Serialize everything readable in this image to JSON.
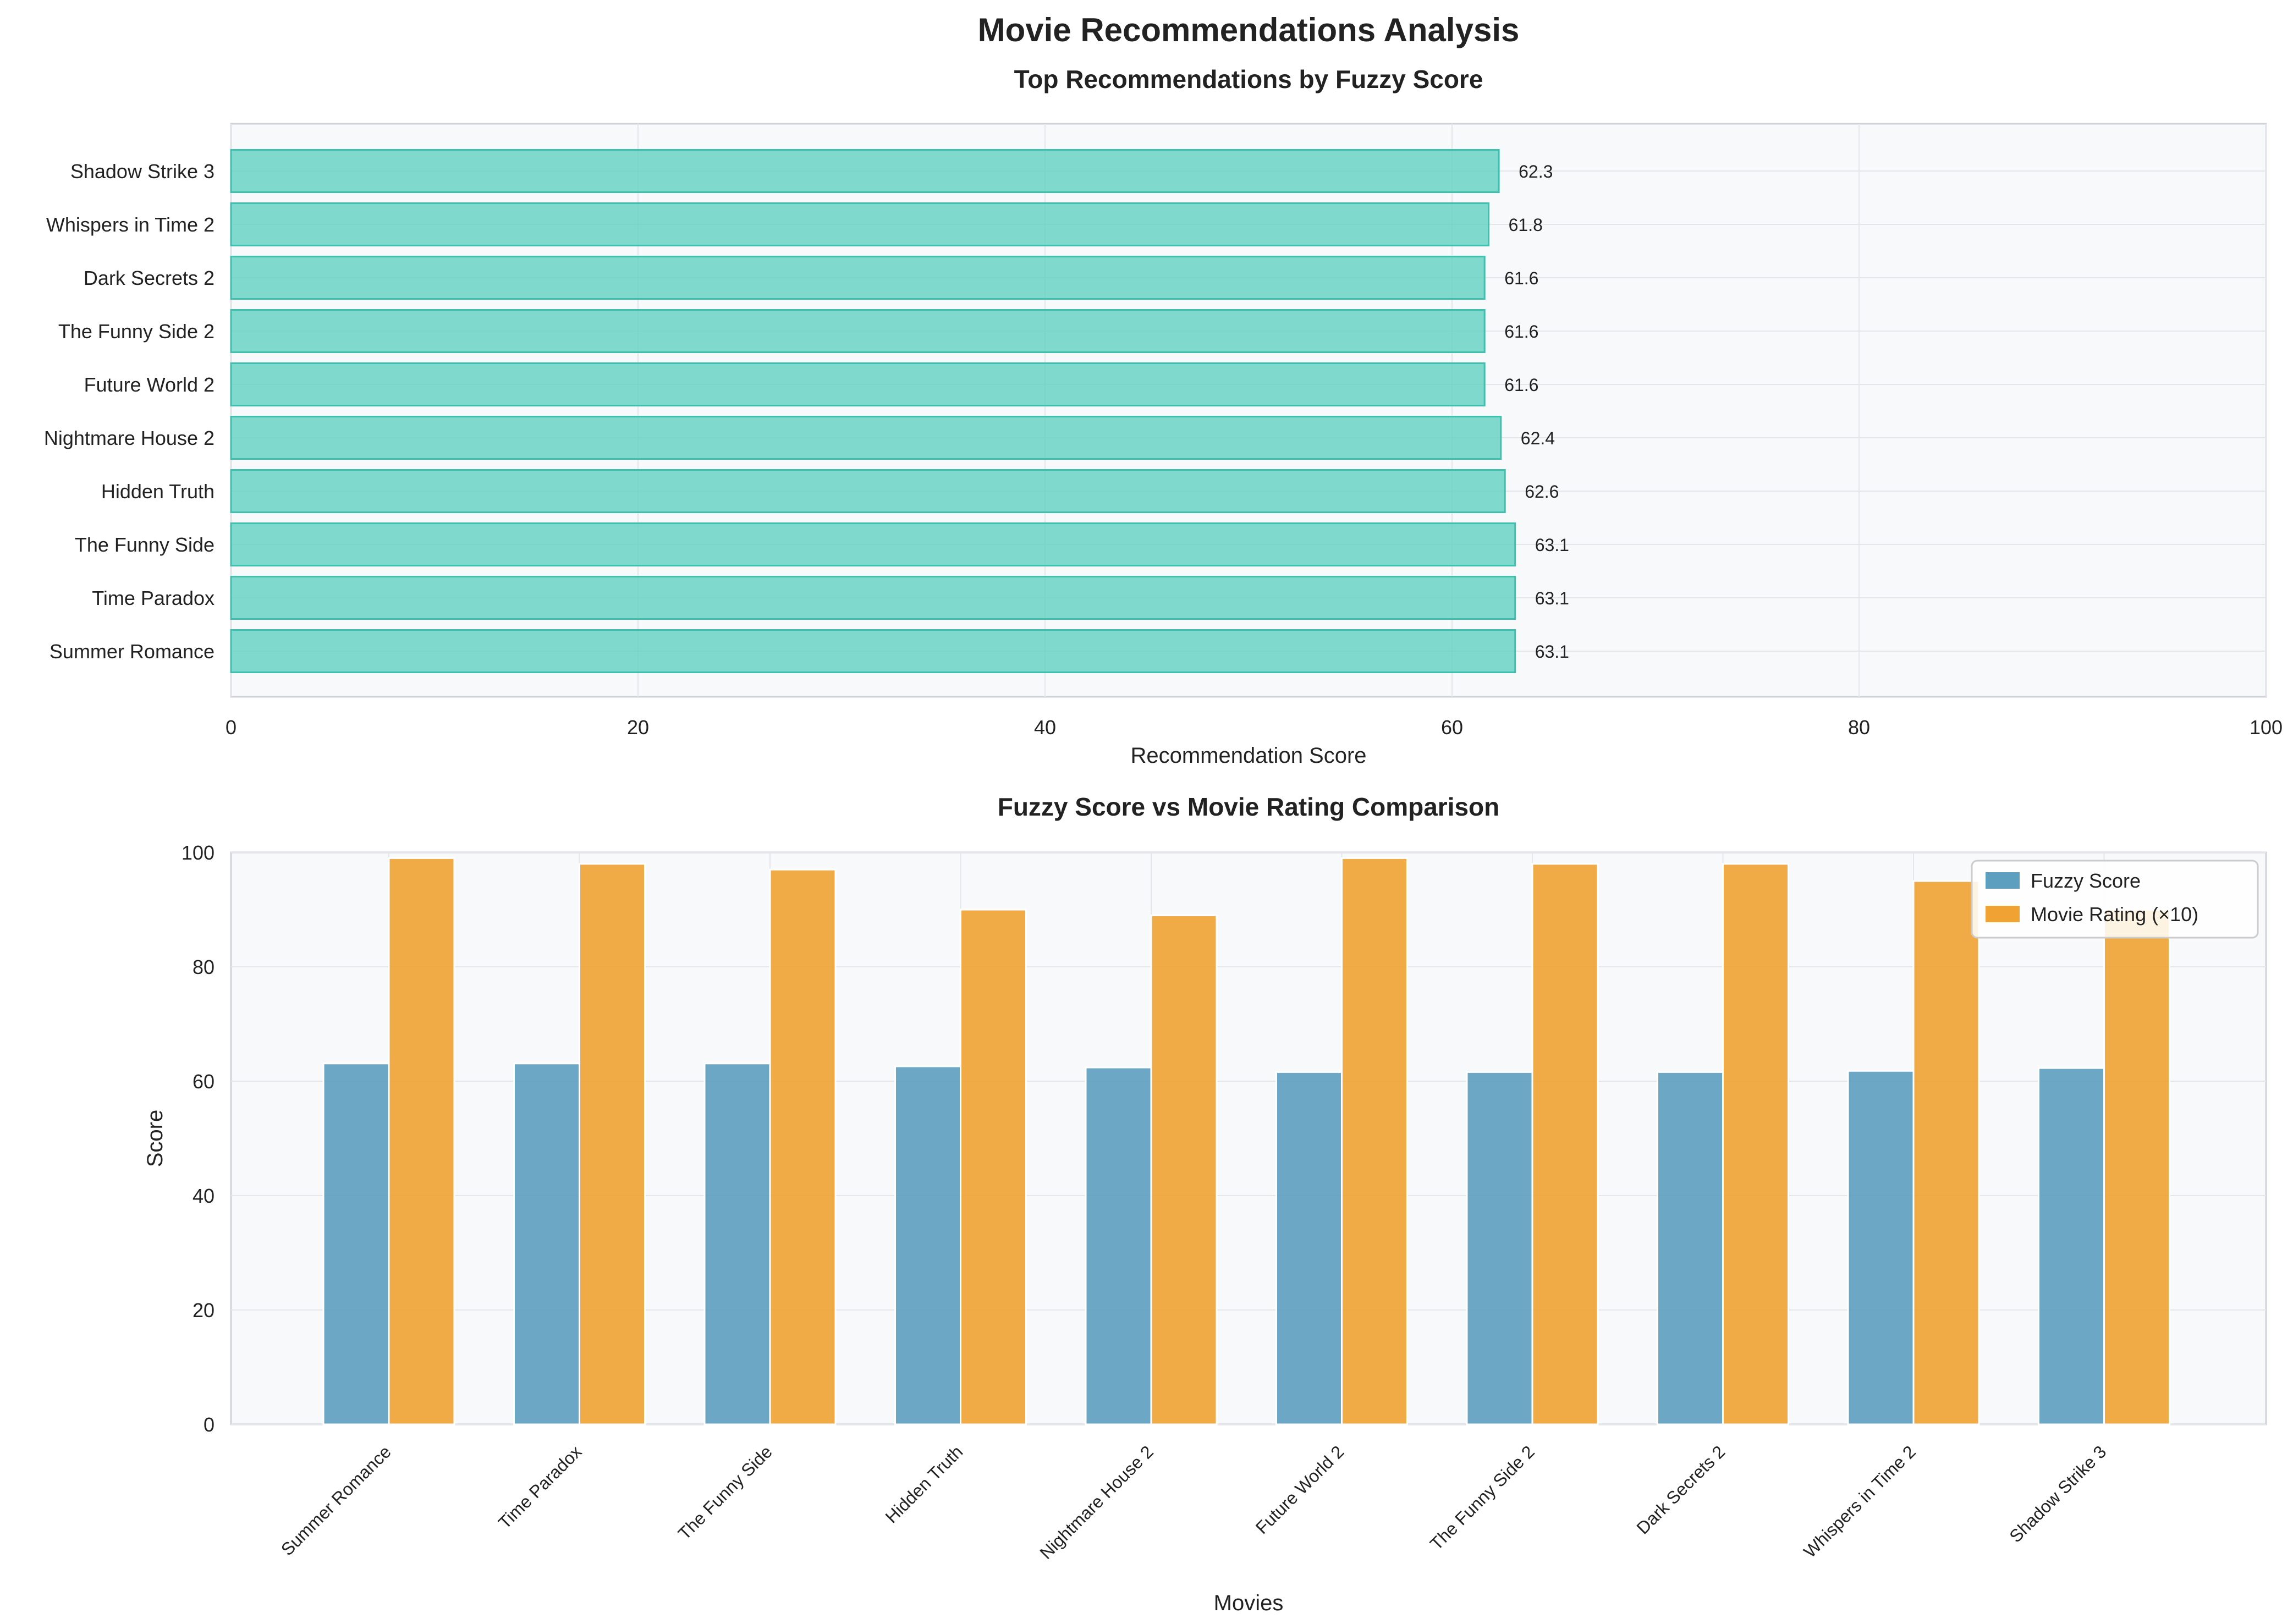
{
  "figure": {
    "title": "Movie Recommendations Analysis"
  },
  "chart_data": [
    {
      "type": "bar",
      "orientation": "horizontal",
      "title": "Top Recommendations by Fuzzy Score",
      "xlabel": "Recommendation Score",
      "ylabel": "",
      "xlim": [
        0,
        100
      ],
      "xticks": [
        "0",
        "20",
        "40",
        "60",
        "80",
        "100"
      ],
      "grid": true,
      "categories": [
        "Shadow Strike 3",
        "Whispers in Time 2",
        "Dark Secrets 2",
        "The Funny Side 2",
        "Future World 2",
        "Nightmare House 2",
        "Hidden Truth",
        "The Funny Side",
        "Time Paradox",
        "Summer Romance"
      ],
      "values": [
        62.3,
        61.8,
        61.6,
        61.6,
        61.6,
        62.4,
        62.6,
        63.1,
        63.1,
        63.1
      ],
      "value_labels": [
        "62.3",
        "61.8",
        "61.6",
        "61.6",
        "61.6",
        "62.4",
        "62.6",
        "63.1",
        "63.1",
        "63.1"
      ],
      "color": "#5ecfbf"
    },
    {
      "type": "bar",
      "orientation": "vertical",
      "title": "Fuzzy Score vs Movie Rating Comparison",
      "xlabel": "Movies",
      "ylabel": "Score",
      "ylim": [
        0,
        100
      ],
      "yticks": [
        "0",
        "20",
        "40",
        "60",
        "80",
        "100"
      ],
      "grid": true,
      "legend_position": "top-right",
      "categories": [
        "Summer Romance",
        "Time Paradox",
        "The Funny Side",
        "Hidden Truth",
        "Nightmare House 2",
        "Future World 2",
        "The Funny Side 2",
        "Dark Secrets 2",
        "Whispers in Time 2",
        "Shadow Strike 3"
      ],
      "series": [
        {
          "name": "Fuzzy Score",
          "color": "#5c9fbf",
          "values": [
            63.1,
            63.1,
            63.1,
            62.6,
            62.4,
            61.6,
            61.6,
            61.6,
            61.8,
            62.3
          ]
        },
        {
          "name": "Movie Rating (×10)",
          "color": "#f0a232",
          "values": [
            99,
            98,
            97,
            90,
            89,
            99,
            98,
            98,
            95,
            90
          ]
        }
      ]
    }
  ]
}
